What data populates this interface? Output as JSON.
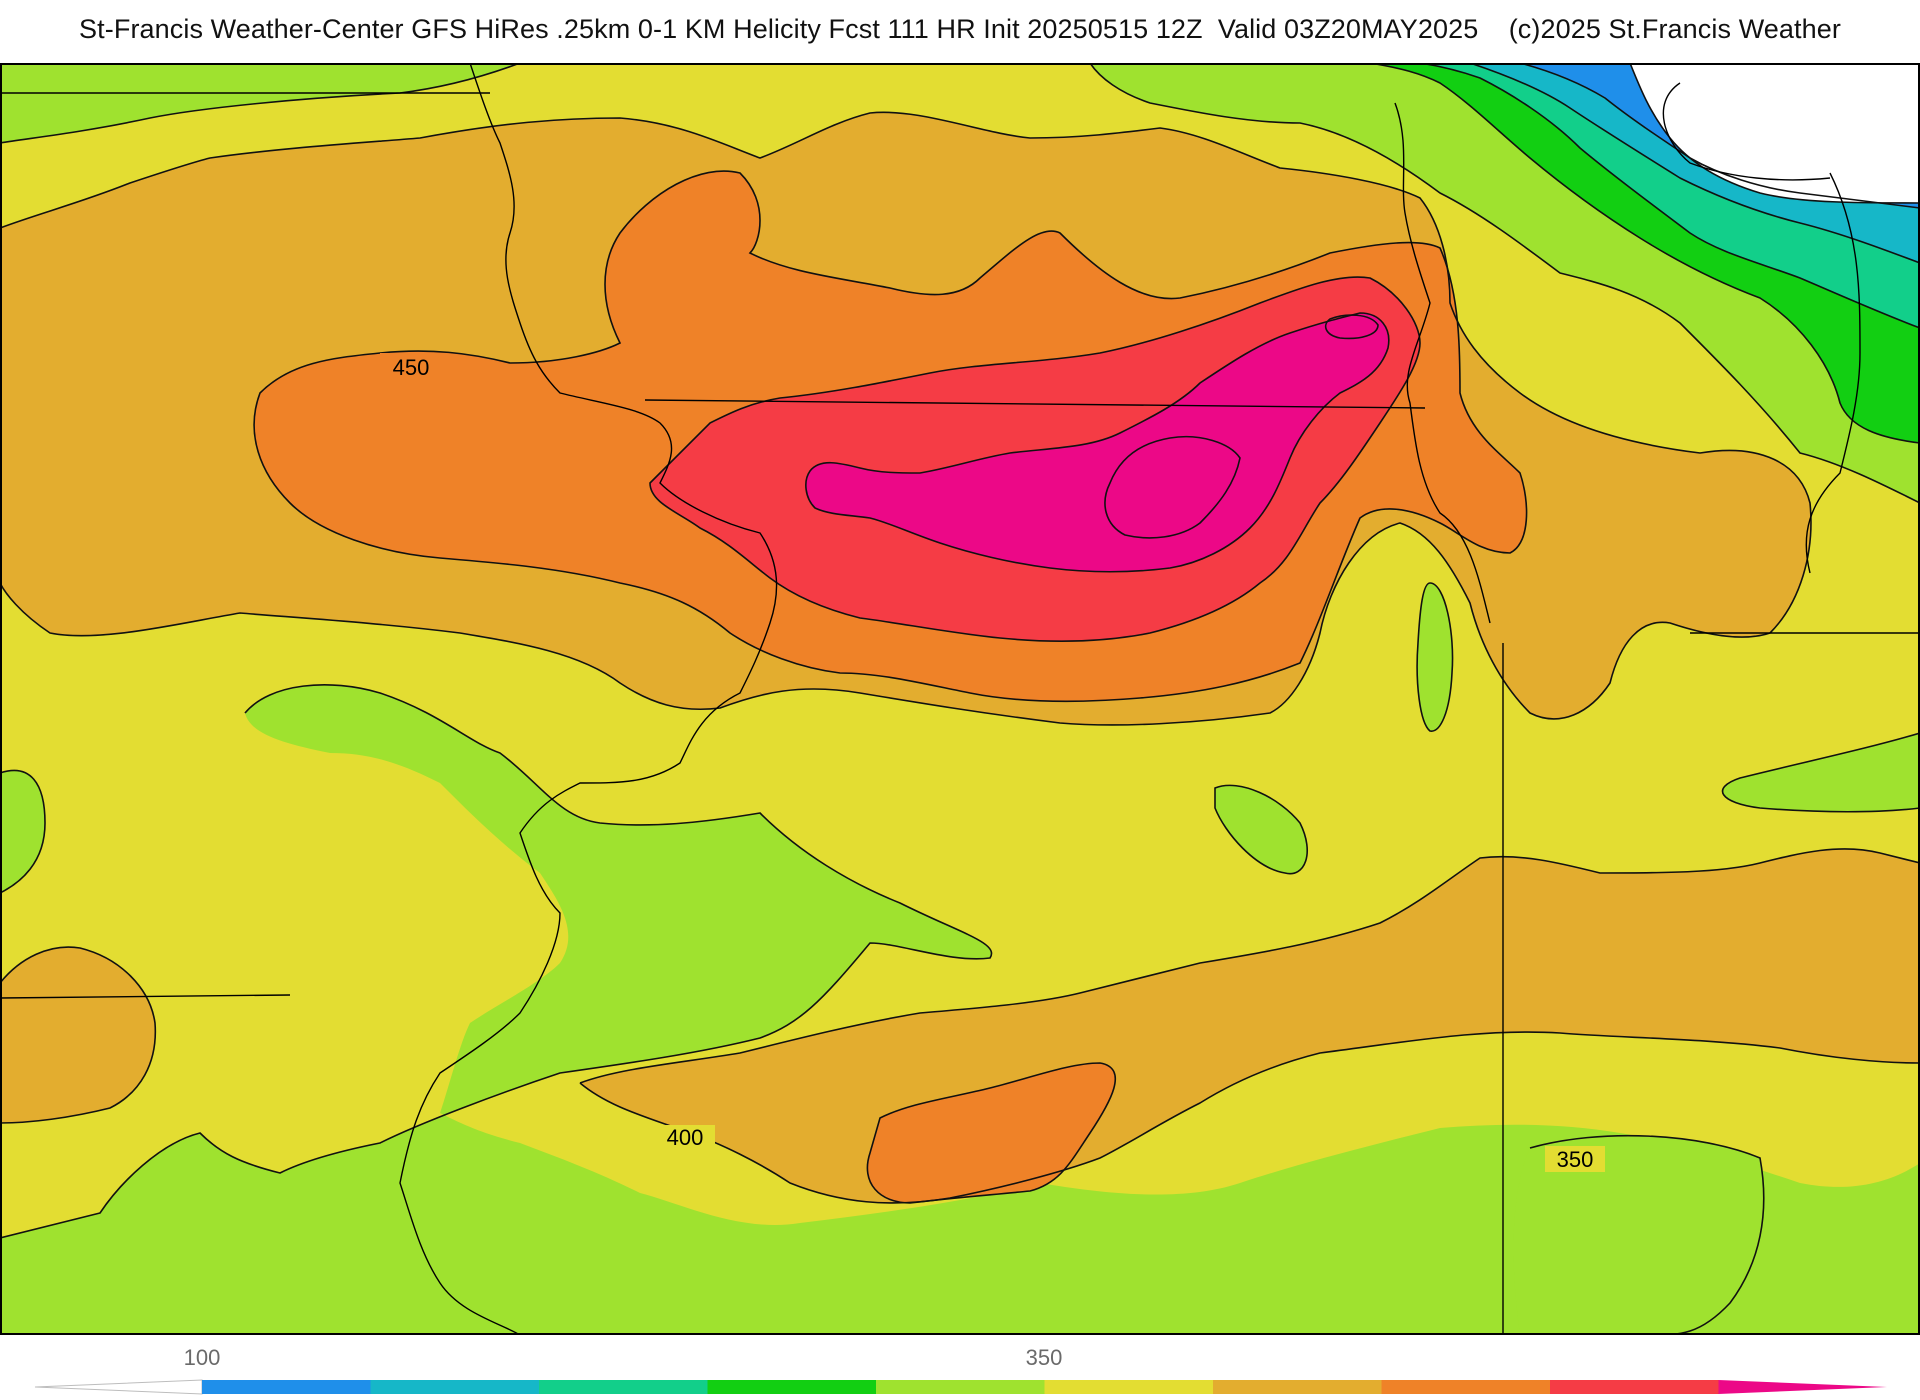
{
  "header": {
    "title": "St-Francis Weather-Center GFS HiRes .25km 0-1 KM Helicity Fcst 111 HR Init 20250515 12Z  Valid 03Z20MAY2025    (c)2025 St.Francis Weather"
  },
  "map": {
    "contour_labels": [
      {
        "id": "c450",
        "text": "450"
      },
      {
        "id": "c400",
        "text": "400"
      },
      {
        "id": "c350",
        "text": "350"
      }
    ]
  },
  "colorbar": {
    "tick_labels": [
      "100",
      "350"
    ],
    "colors": [
      "#1f8fea",
      "#16b7c8",
      "#12cf8a",
      "#12cf12",
      "#9fe22f",
      "#e3dd32",
      "#e3ad2f",
      "#ef8228",
      "#f53c45",
      "#ec0887"
    ]
  },
  "fills": {
    "white": "#ffffff",
    "blue": "#1f8fea",
    "cyan": "#16b7c8",
    "teal": "#12cf8a",
    "green": "#12cf12",
    "lime": "#9fe22f",
    "yellow": "#e3dd32",
    "gold": "#e3ad2f",
    "orange": "#ef8228",
    "red": "#f53c45",
    "magenta": "#ec0887"
  }
}
